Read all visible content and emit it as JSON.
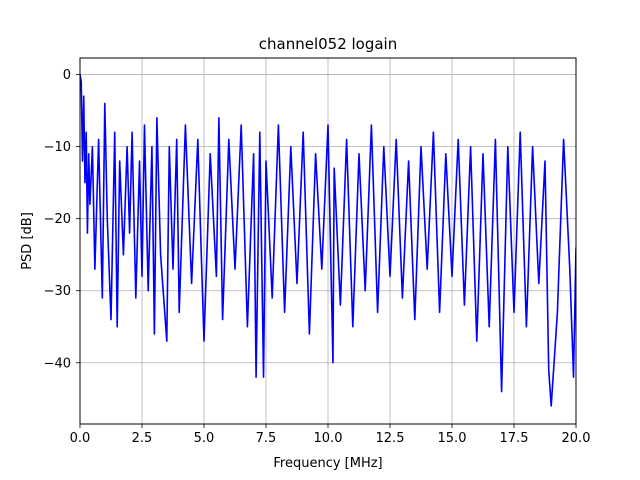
{
  "chart_data": {
    "type": "line",
    "title": "channel052 logain",
    "xlabel": "Frequency [MHz]",
    "ylabel": "PSD [dB]",
    "xlim": [
      0,
      20
    ],
    "ylim": [
      -48.5,
      2.3
    ],
    "x_ticks": [
      0.0,
      2.5,
      5.0,
      7.5,
      10.0,
      12.5,
      15.0,
      17.5,
      20.0
    ],
    "x_tick_labels": [
      "0.0",
      "2.5",
      "5.0",
      "7.5",
      "10.0",
      "12.5",
      "15.0",
      "17.5",
      "20.0"
    ],
    "y_ticks": [
      0,
      -10,
      -20,
      -30,
      -40
    ],
    "y_tick_labels": [
      "0",
      "−10",
      "−20",
      "−30",
      "−40"
    ],
    "grid": true,
    "series": [
      {
        "color": "#0000ff",
        "x": [
          0.0,
          0.05,
          0.1,
          0.15,
          0.2,
          0.25,
          0.3,
          0.35,
          0.4,
          0.5,
          0.6,
          0.75,
          0.9,
          1.0,
          1.1,
          1.25,
          1.4,
          1.5,
          1.6,
          1.75,
          1.9,
          2.0,
          2.1,
          2.25,
          2.4,
          2.5,
          2.6,
          2.75,
          2.9,
          3.0,
          3.1,
          3.25,
          3.5,
          3.6,
          3.75,
          3.9,
          4.0,
          4.25,
          4.5,
          4.75,
          4.9,
          5.0,
          5.25,
          5.5,
          5.6,
          5.75,
          6.0,
          6.25,
          6.5,
          6.75,
          7.0,
          7.1,
          7.25,
          7.4,
          7.5,
          7.75,
          8.0,
          8.25,
          8.5,
          8.75,
          9.0,
          9.25,
          9.5,
          9.75,
          10.0,
          10.2,
          10.25,
          10.5,
          10.75,
          11.0,
          11.25,
          11.5,
          11.75,
          12.0,
          12.25,
          12.5,
          12.75,
          13.0,
          13.25,
          13.5,
          13.75,
          14.0,
          14.25,
          14.5,
          14.75,
          15.0,
          15.25,
          15.5,
          15.75,
          16.0,
          16.25,
          16.5,
          16.75,
          17.0,
          17.25,
          17.5,
          17.75,
          18.0,
          18.25,
          18.5,
          18.75,
          18.9,
          19.0,
          19.25,
          19.5,
          19.75,
          19.9,
          20.0
        ],
        "y": [
          0,
          -1,
          -12,
          -3,
          -15,
          -8,
          -22,
          -11,
          -18,
          -10,
          -27,
          -9,
          -31,
          -4,
          -20,
          -34,
          -8,
          -35,
          -12,
          -25,
          -10,
          -22,
          -8,
          -31,
          -12,
          -28,
          -7,
          -30,
          -10,
          -36,
          -6,
          -25,
          -37,
          -10,
          -27,
          -9,
          -33,
          -7,
          -29,
          -9,
          -26,
          -37,
          -11,
          -28,
          -6,
          -34,
          -9,
          -27,
          -7,
          -35,
          -11,
          -42,
          -8,
          -42,
          -12,
          -31,
          -7,
          -33,
          -10,
          -29,
          -8,
          -36,
          -11,
          -27,
          -7,
          -40,
          -13,
          -32,
          -9,
          -35,
          -11,
          -30,
          -7,
          -33,
          -10,
          -28,
          -9,
          -31,
          -12,
          -34,
          -10,
          -27,
          -8,
          -33,
          -11,
          -28,
          -9,
          -32,
          -10,
          -37,
          -11,
          -35,
          -9,
          -44,
          -10,
          -33,
          -8,
          -35,
          -10,
          -29,
          -12,
          -41,
          -46,
          -33,
          -9,
          -27,
          -42,
          -24
        ]
      }
    ]
  }
}
